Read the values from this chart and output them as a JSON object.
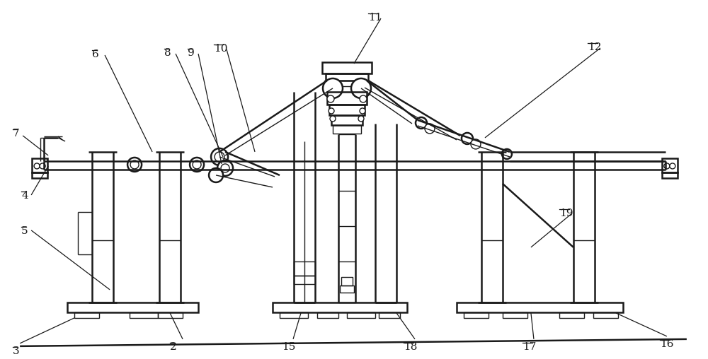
{
  "bg_color": "#ffffff",
  "line_color": "#1a1a1a",
  "lw": 1.8,
  "tlw": 1.0,
  "fig_width": 10.0,
  "fig_height": 5.08
}
